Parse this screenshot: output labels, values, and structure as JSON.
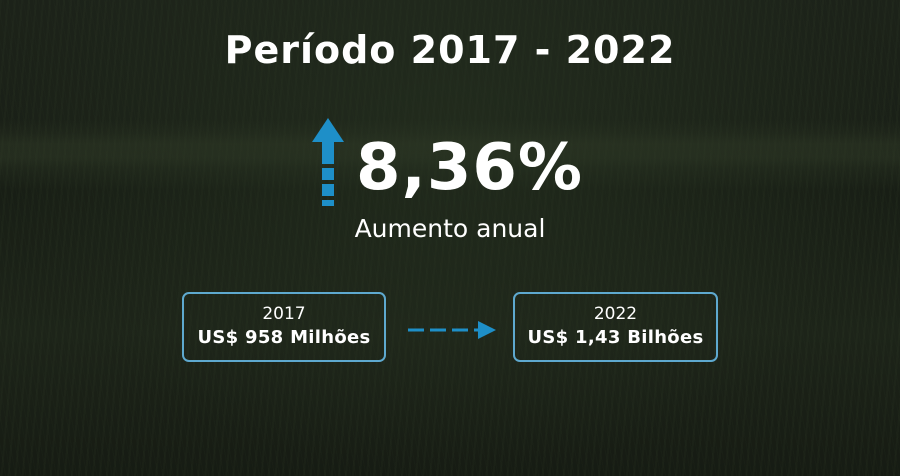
{
  "title": "Período 2017 - 2022",
  "highlight": {
    "value": "8,36%",
    "label": "Aumento anual",
    "trend_icon": "arrow-up-icon"
  },
  "comparison": {
    "start": {
      "year": "2017",
      "amount": "US$ 958 Milhões"
    },
    "end": {
      "year": "2022",
      "amount": "US$ 1,43 Bilhões"
    },
    "connector_icon": "dashed-arrow-right-icon"
  },
  "colors": {
    "accent": "#1e8fc8",
    "box_border": "#5ea9cf",
    "text": "#ffffff"
  }
}
